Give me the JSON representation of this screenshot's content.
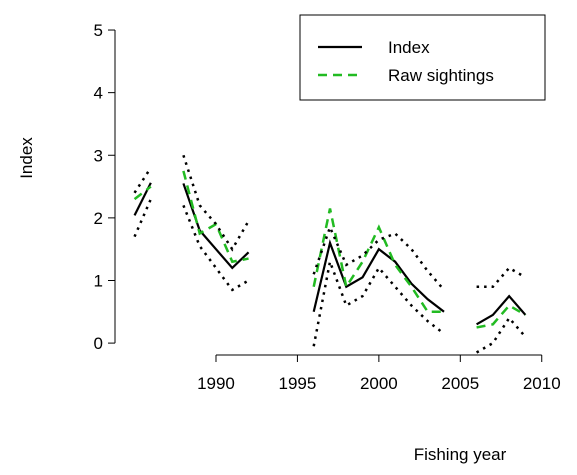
{
  "chart_data": {
    "type": "line",
    "x_label": "Fishing year",
    "y_label": "Index",
    "x": [
      1985,
      1986,
      1987,
      1988,
      1989,
      1990,
      1991,
      1992,
      1993,
      1994,
      1995,
      1996,
      1997,
      1998,
      1999,
      2000,
      2001,
      2002,
      2003,
      2004,
      2005,
      2006,
      2007,
      2008,
      2009
    ],
    "series": [
      {
        "name": "Index",
        "color": "#000000",
        "style": "solid",
        "width": 2.2,
        "values": [
          2.04,
          2.56,
          null,
          2.55,
          1.8,
          1.5,
          1.2,
          1.45,
          null,
          null,
          null,
          0.5,
          1.6,
          0.9,
          1.05,
          1.5,
          1.3,
          0.95,
          0.7,
          0.5,
          null,
          0.3,
          0.45,
          0.75,
          0.45
        ]
      },
      {
        "name": "Raw sightings",
        "color": "#22bb22",
        "style": "dashed",
        "width": 2.5,
        "values": [
          2.3,
          2.5,
          null,
          2.75,
          1.75,
          1.9,
          1.3,
          1.35,
          null,
          null,
          null,
          0.9,
          2.15,
          0.9,
          1.3,
          1.85,
          1.25,
          0.9,
          0.5,
          0.5,
          null,
          0.25,
          0.3,
          0.6,
          0.45
        ]
      },
      {
        "color": "#000000",
        "style": "dotted",
        "width": 2.5,
        "values": [
          2.4,
          2.8,
          null,
          3.0,
          2.2,
          1.9,
          1.5,
          1.95,
          null,
          null,
          null,
          1.1,
          1.85,
          1.25,
          1.4,
          1.65,
          1.75,
          1.5,
          1.15,
          0.85,
          null,
          0.9,
          0.9,
          1.2,
          1.05
        ]
      },
      {
        "color": "#000000",
        "style": "dotted",
        "width": 2.5,
        "values": [
          1.7,
          2.3,
          null,
          2.2,
          1.55,
          1.2,
          0.85,
          1.0,
          null,
          null,
          null,
          -0.05,
          1.3,
          0.6,
          0.75,
          1.2,
          0.9,
          0.6,
          0.35,
          0.15,
          null,
          -0.15,
          0.0,
          0.4,
          0.1
        ]
      }
    ],
    "xlim": [
      1983.8,
      2010.2
    ],
    "xticks": [
      1990,
      1995,
      2000,
      2005,
      2010
    ],
    "ylim": [
      -0.19,
      5.24
    ],
    "yticks": [
      0,
      1,
      2,
      3,
      4,
      5
    ],
    "legend": "top-right"
  }
}
